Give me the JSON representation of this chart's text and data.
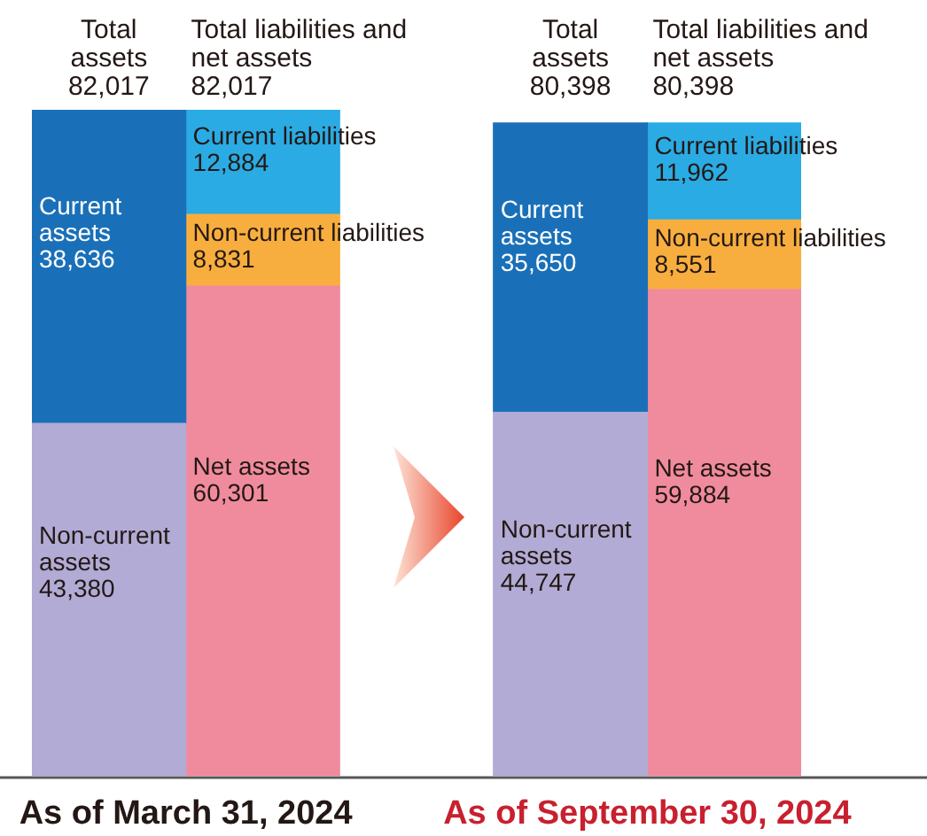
{
  "chart_data": {
    "type": "bar",
    "stacked": true,
    "categories": [
      "Total assets",
      "Total liabilities and net assets",
      null,
      "Total assets",
      "Total liabilities and net assets"
    ],
    "totals": [
      "82,017",
      "82,017",
      null,
      "80,398",
      "80,398"
    ],
    "series": [
      {
        "name": "Non-current assets",
        "color": "#b1abd5",
        "values": [
          43380,
          null,
          null,
          44747,
          null
        ],
        "value_labels": [
          "43,380",
          null,
          null,
          "44,747",
          null
        ]
      },
      {
        "name": "Current assets",
        "color": "#1a70b8",
        "values": [
          38636,
          null,
          null,
          35650,
          null
        ],
        "value_labels": [
          "38,636",
          null,
          null,
          "35,650",
          null
        ]
      },
      {
        "name": "Net assets",
        "color": "#f08b9d",
        "values": [
          null,
          60301,
          null,
          null,
          59884
        ],
        "value_labels": [
          null,
          "60,301",
          null,
          null,
          "59,884"
        ]
      },
      {
        "name": "Non-current liabilities",
        "color": "#f8ae3e",
        "values": [
          null,
          8831,
          null,
          null,
          8551
        ],
        "value_labels": [
          null,
          "8,831",
          null,
          null,
          "8,551"
        ]
      },
      {
        "name": "Current liabilities",
        "color": "#2aabe3",
        "values": [
          null,
          12884,
          null,
          null,
          11962
        ],
        "value_labels": [
          null,
          "12,884",
          null,
          null,
          "11,962"
        ]
      }
    ],
    "annotations": [
      "As of March 31, 2024",
      "As of September 30, 2024"
    ]
  }
}
